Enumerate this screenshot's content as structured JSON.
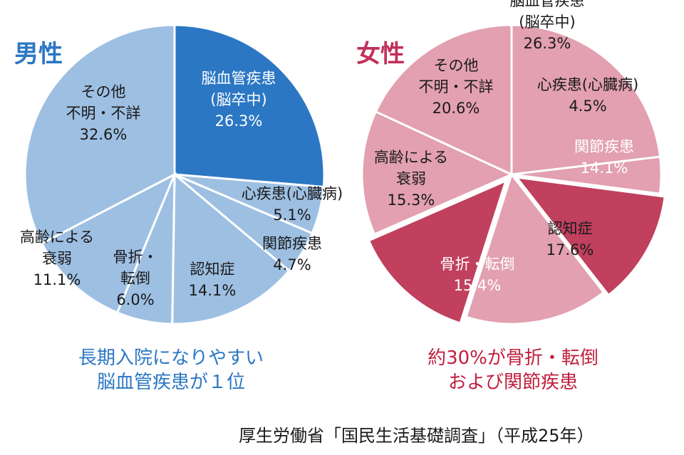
{
  "source": "厚生労働省「国民生活基礎調査」（平成25年）",
  "colors": {
    "male_base": "#9dbfe2",
    "male_highlight": "#2b77c4",
    "female_base": "#e2a0b0",
    "female_highlight": "#c0405e",
    "male_text": "#2b77c4",
    "female_text": "#c0203e"
  },
  "chart_data": [
    {
      "type": "pie",
      "title": "男性",
      "caption": [
        "長期入院になりやすい",
        "脳血管疾患が１位"
      ],
      "slices": [
        {
          "label": [
            "脳血管疾患",
            "(脳卒中)"
          ],
          "value": 26.3,
          "value_text": "26.3%",
          "highlight": true
        },
        {
          "label": [
            "心疾患(心臓病)"
          ],
          "value": 5.1,
          "value_text": "5.1%",
          "highlight": false
        },
        {
          "label": [
            "関節疾患"
          ],
          "value": 4.7,
          "value_text": "4.7%",
          "highlight": false
        },
        {
          "label": [
            "認知症"
          ],
          "value": 14.1,
          "value_text": "14.1%",
          "highlight": false
        },
        {
          "label": [
            "骨折・",
            "転倒"
          ],
          "value": 6.0,
          "value_text": "6.0%",
          "highlight": false
        },
        {
          "label": [
            "高齢による",
            "衰弱"
          ],
          "value": 11.1,
          "value_text": "11.1%",
          "highlight": false
        },
        {
          "label": [
            "その他",
            "不明・不詳"
          ],
          "value": 32.6,
          "value_text": "32.6%",
          "highlight": false
        }
      ]
    },
    {
      "type": "pie",
      "title": "女性",
      "caption": [
        "約30%が骨折・転倒",
        "および関節疾患"
      ],
      "slices": [
        {
          "label": [
            "脳血管疾患",
            "(脳卒中)"
          ],
          "value": 26.3,
          "value_text": "26.3%",
          "highlight": false
        },
        {
          "label": [
            "心疾患(心臓病)"
          ],
          "value": 4.5,
          "value_text": "4.5%",
          "highlight": false
        },
        {
          "label": [
            "関節疾患"
          ],
          "value": 14.1,
          "value_text": "14.1%",
          "highlight": true
        },
        {
          "label": [
            "認知症"
          ],
          "value": 17.6,
          "value_text": "17.6%",
          "highlight": false
        },
        {
          "label": [
            "骨折・転倒"
          ],
          "value": 15.4,
          "value_text": "15.4%",
          "highlight": true
        },
        {
          "label": [
            "高齢による",
            "衰弱"
          ],
          "value": 15.3,
          "value_text": "15.3%",
          "highlight": false
        },
        {
          "label": [
            "その他",
            "不明・不詳"
          ],
          "value": 20.6,
          "value_text": "20.6%",
          "highlight": false
        }
      ]
    }
  ]
}
